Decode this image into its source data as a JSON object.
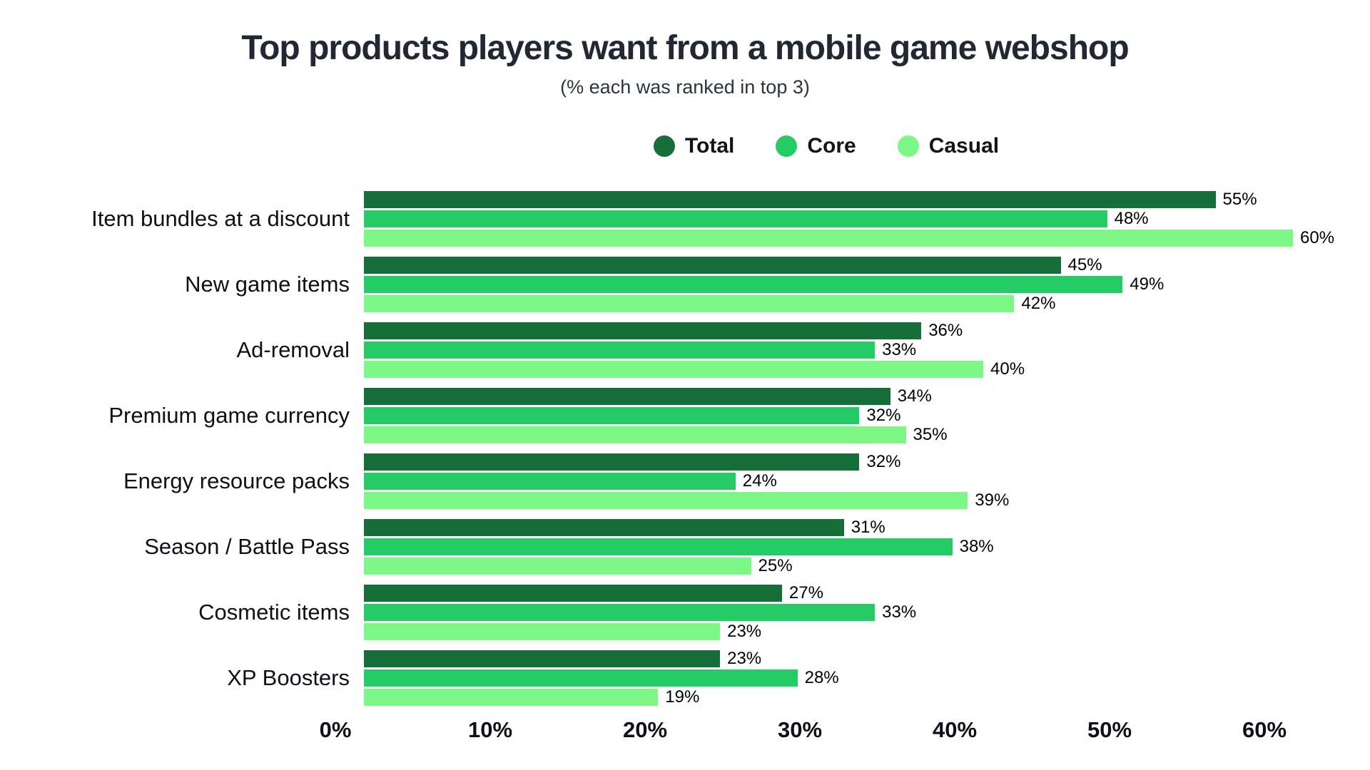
{
  "title": "Top products players want from a mobile game webshop",
  "subtitle": "(% each was ranked in top 3)",
  "legend": [
    {
      "label": "Total",
      "color": "#166e38"
    },
    {
      "label": "Core",
      "color": "#25cc66"
    },
    {
      "label": "Casual",
      "color": "#7df887"
    }
  ],
  "chart_data": {
    "type": "bar",
    "orientation": "horizontal",
    "title": "Top products players want from a mobile game webshop",
    "subtitle": "(% each was ranked in top 3)",
    "categories": [
      "Item bundles at a discount",
      "New game items",
      "Ad-removal",
      "Premium game currency",
      "Energy resource packs",
      "Season / Battle Pass",
      "Cosmetic items",
      "XP Boosters"
    ],
    "series": [
      {
        "name": "Total",
        "color": "#166e38",
        "values": [
          55,
          45,
          36,
          34,
          32,
          31,
          27,
          23
        ]
      },
      {
        "name": "Core",
        "color": "#25cc66",
        "values": [
          48,
          49,
          33,
          32,
          24,
          38,
          33,
          28
        ]
      },
      {
        "name": "Casual",
        "color": "#7df887",
        "values": [
          60,
          42,
          40,
          35,
          39,
          25,
          23,
          19
        ]
      }
    ],
    "value_suffix": "%",
    "xlim": [
      0,
      60
    ],
    "x_ticks": [
      "0%",
      "10%",
      "20%",
      "30%",
      "40%",
      "50%",
      "60%"
    ],
    "grid": false,
    "legend_position": "top"
  }
}
